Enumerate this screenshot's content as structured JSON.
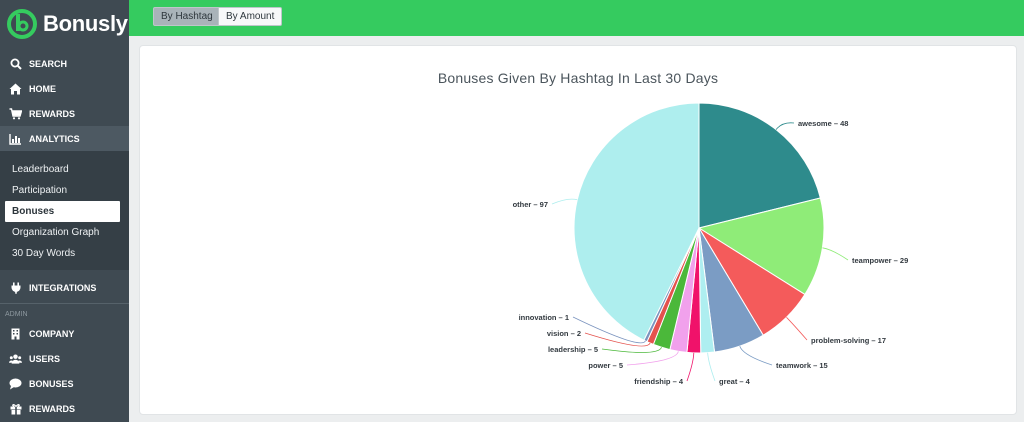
{
  "app": {
    "name": "Bonusly"
  },
  "sidebar": {
    "top_items": [
      {
        "label": "SEARCH",
        "icon": "search-icon"
      },
      {
        "label": "HOME",
        "icon": "home-icon"
      },
      {
        "label": "REWARDS",
        "icon": "cart-icon"
      },
      {
        "label": "ANALYTICS",
        "icon": "analytics-icon"
      }
    ],
    "analytics_sub": [
      {
        "label": "Leaderboard"
      },
      {
        "label": "Participation"
      },
      {
        "label": "Bonuses"
      },
      {
        "label": "Organization Graph"
      },
      {
        "label": "30 Day Words"
      }
    ],
    "integrations": {
      "label": "INTEGRATIONS",
      "icon": "plug-icon"
    },
    "admin_label": "ADMIN",
    "admin_items": [
      {
        "label": "COMPANY",
        "icon": "building-icon"
      },
      {
        "label": "USERS",
        "icon": "users-icon"
      },
      {
        "label": "BONUSES",
        "icon": "chat-icon"
      },
      {
        "label": "REWARDS",
        "icon": "gift-icon"
      }
    ]
  },
  "toolbar": {
    "by_hashtag": "By Hashtag",
    "by_amount": "By Amount"
  },
  "colors": {
    "brand_green": "#35cb5f",
    "sidebar": "#3f4a52"
  },
  "chart_data": {
    "type": "pie",
    "title": "Bonuses Given By Hashtag In Last 30 Days",
    "slices": [
      {
        "label": "awesome",
        "value": 48,
        "color": "#2e8b8c"
      },
      {
        "label": "teampower",
        "value": 29,
        "color": "#8fec78"
      },
      {
        "label": "problem-solving",
        "value": 17,
        "color": "#f45b5b"
      },
      {
        "label": "teamwork",
        "value": 15,
        "color": "#7b9cc4"
      },
      {
        "label": "great",
        "value": 4,
        "color": "#aeeef0"
      },
      {
        "label": "friendship",
        "value": 4,
        "color": "#f0126a"
      },
      {
        "label": "power",
        "value": 5,
        "color": "#f1a1ec"
      },
      {
        "label": "leadership",
        "value": 5,
        "color": "#4bb83a"
      },
      {
        "label": "vision",
        "value": 2,
        "color": "#e4524d"
      },
      {
        "label": "innovation",
        "value": 1,
        "color": "#7a93be"
      },
      {
        "label": "other",
        "value": 97,
        "color": "#aeeeee"
      }
    ]
  }
}
